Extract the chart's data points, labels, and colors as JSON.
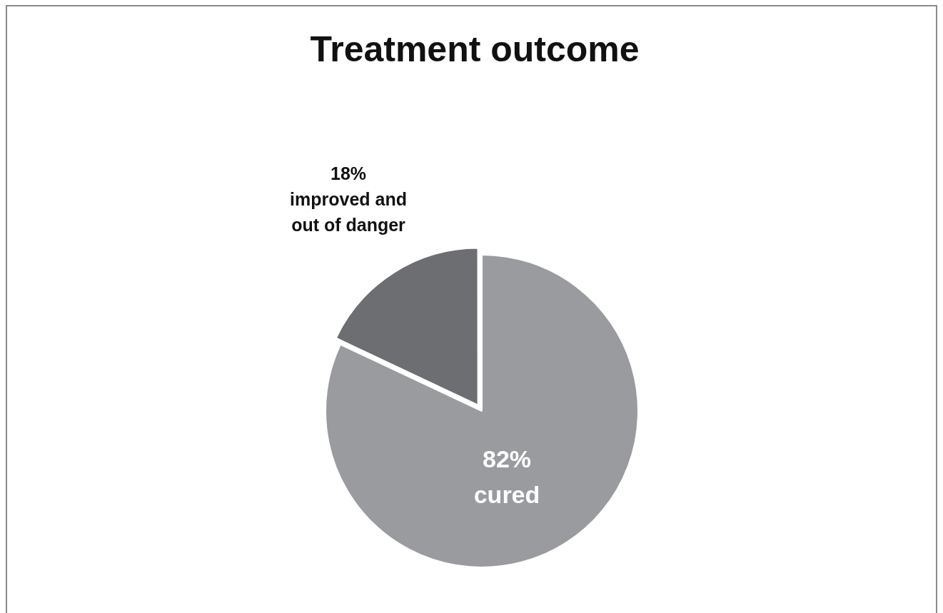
{
  "chart_data": {
    "type": "pie",
    "title": "Treatment outcome",
    "categories": [
      "cured",
      "improved and out of danger"
    ],
    "values": [
      82,
      18
    ],
    "value_labels": [
      "82%",
      "18%"
    ],
    "colors": [
      "#9a9b9f",
      "#6d6e71"
    ]
  }
}
